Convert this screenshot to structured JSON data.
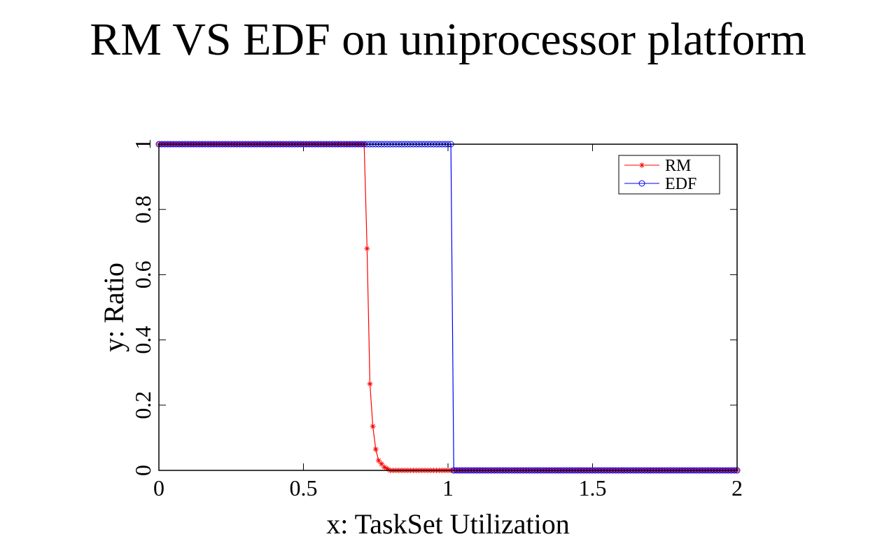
{
  "chart_data": {
    "type": "line",
    "title": "RM VS EDF on uniprocessor platform",
    "x_label": "x: TaskSet Utilization",
    "y_label": "y: Ratio",
    "x": [
      0,
      0.01,
      0.02,
      0.03,
      0.04,
      0.05,
      0.06,
      0.07,
      0.08,
      0.09,
      0.1,
      0.11,
      0.12,
      0.13,
      0.14,
      0.15,
      0.16,
      0.17,
      0.18,
      0.19,
      0.2,
      0.21,
      0.22,
      0.23,
      0.24,
      0.25,
      0.26,
      0.27,
      0.28,
      0.29,
      0.3,
      0.31,
      0.32,
      0.33,
      0.34,
      0.35,
      0.36,
      0.37,
      0.38,
      0.39,
      0.4,
      0.41,
      0.42,
      0.43,
      0.44,
      0.45,
      0.46,
      0.47,
      0.48,
      0.49,
      0.5,
      0.51,
      0.52,
      0.53,
      0.54,
      0.55,
      0.56,
      0.57,
      0.58,
      0.59,
      0.6,
      0.61,
      0.62,
      0.63,
      0.64,
      0.65,
      0.66,
      0.67,
      0.68,
      0.69,
      0.7,
      0.71,
      0.72,
      0.73,
      0.74,
      0.75,
      0.76,
      0.77,
      0.78,
      0.79,
      0.8,
      0.81,
      0.82,
      0.83,
      0.84,
      0.85,
      0.86,
      0.87,
      0.88,
      0.89,
      0.9,
      0.91,
      0.92,
      0.93,
      0.94,
      0.95,
      0.96,
      0.97,
      0.98,
      0.99,
      1,
      1.01,
      1.02,
      1.03,
      1.04,
      1.05,
      1.06,
      1.07,
      1.08,
      1.09,
      1.1,
      1.11,
      1.12,
      1.13,
      1.14,
      1.15,
      1.16,
      1.17,
      1.18,
      1.19,
      1.2,
      1.21,
      1.22,
      1.23,
      1.24,
      1.25,
      1.26,
      1.27,
      1.28,
      1.29,
      1.3,
      1.31,
      1.32,
      1.33,
      1.34,
      1.35,
      1.36,
      1.37,
      1.38,
      1.39,
      1.4,
      1.41,
      1.42,
      1.43,
      1.44,
      1.45,
      1.46,
      1.47,
      1.48,
      1.49,
      1.5,
      1.51,
      1.52,
      1.53,
      1.54,
      1.55,
      1.56,
      1.57,
      1.58,
      1.59,
      1.6,
      1.61,
      1.62,
      1.63,
      1.64,
      1.65,
      1.66,
      1.67,
      1.68,
      1.69,
      1.7,
      1.71,
      1.72,
      1.73,
      1.74,
      1.75,
      1.76,
      1.77,
      1.78,
      1.79,
      1.8,
      1.81,
      1.82,
      1.83,
      1.84,
      1.85,
      1.86,
      1.87,
      1.88,
      1.89,
      1.9,
      1.91,
      1.92,
      1.93,
      1.94,
      1.95,
      1.96,
      1.97,
      1.98,
      1.99,
      2
    ],
    "series": [
      {
        "name": "RM",
        "color": "#ff0000",
        "marker": "star",
        "values": [
          1,
          1,
          1,
          1,
          1,
          1,
          1,
          1,
          1,
          1,
          1,
          1,
          1,
          1,
          1,
          1,
          1,
          1,
          1,
          1,
          1,
          1,
          1,
          1,
          1,
          1,
          1,
          1,
          1,
          1,
          1,
          1,
          1,
          1,
          1,
          1,
          1,
          1,
          1,
          1,
          1,
          1,
          1,
          1,
          1,
          1,
          1,
          1,
          1,
          1,
          1,
          1,
          1,
          1,
          1,
          1,
          1,
          1,
          1,
          1,
          1,
          1,
          1,
          1,
          1,
          1,
          1,
          1,
          1,
          1,
          1,
          1,
          0.68,
          0.265,
          0.135,
          0.065,
          0.03,
          0.02,
          0.01,
          0.005,
          0,
          0,
          0,
          0,
          0,
          0,
          0,
          0,
          0,
          0,
          0,
          0,
          0,
          0,
          0,
          0,
          0,
          0,
          0,
          0,
          0,
          0,
          0,
          0,
          0,
          0,
          0,
          0,
          0,
          0,
          0,
          0,
          0,
          0,
          0,
          0,
          0,
          0,
          0,
          0,
          0,
          0,
          0,
          0,
          0,
          0,
          0,
          0,
          0,
          0,
          0,
          0,
          0,
          0,
          0,
          0,
          0,
          0,
          0,
          0,
          0,
          0,
          0,
          0,
          0,
          0,
          0,
          0,
          0,
          0,
          0,
          0,
          0,
          0,
          0,
          0,
          0,
          0,
          0,
          0,
          0,
          0,
          0,
          0,
          0,
          0,
          0,
          0,
          0,
          0,
          0,
          0,
          0,
          0,
          0,
          0,
          0,
          0,
          0,
          0,
          0,
          0,
          0,
          0,
          0,
          0,
          0,
          0,
          0,
          0,
          0,
          0,
          0,
          0,
          0,
          0,
          0,
          0,
          0,
          0,
          0
        ]
      },
      {
        "name": "EDF",
        "color": "#0000ff",
        "marker": "circle",
        "values": [
          1,
          1,
          1,
          1,
          1,
          1,
          1,
          1,
          1,
          1,
          1,
          1,
          1,
          1,
          1,
          1,
          1,
          1,
          1,
          1,
          1,
          1,
          1,
          1,
          1,
          1,
          1,
          1,
          1,
          1,
          1,
          1,
          1,
          1,
          1,
          1,
          1,
          1,
          1,
          1,
          1,
          1,
          1,
          1,
          1,
          1,
          1,
          1,
          1,
          1,
          1,
          1,
          1,
          1,
          1,
          1,
          1,
          1,
          1,
          1,
          1,
          1,
          1,
          1,
          1,
          1,
          1,
          1,
          1,
          1,
          1,
          1,
          1,
          1,
          1,
          1,
          1,
          1,
          1,
          1,
          1,
          1,
          1,
          1,
          1,
          1,
          1,
          1,
          1,
          1,
          1,
          1,
          1,
          1,
          1,
          1,
          1,
          1,
          1,
          1,
          1,
          1,
          0,
          0,
          0,
          0,
          0,
          0,
          0,
          0,
          0,
          0,
          0,
          0,
          0,
          0,
          0,
          0,
          0,
          0,
          0,
          0,
          0,
          0,
          0,
          0,
          0,
          0,
          0,
          0,
          0,
          0,
          0,
          0,
          0,
          0,
          0,
          0,
          0,
          0,
          0,
          0,
          0,
          0,
          0,
          0,
          0,
          0,
          0,
          0,
          0,
          0,
          0,
          0,
          0,
          0,
          0,
          0,
          0,
          0,
          0,
          0,
          0,
          0,
          0,
          0,
          0,
          0,
          0,
          0,
          0,
          0,
          0,
          0,
          0,
          0,
          0,
          0,
          0,
          0,
          0,
          0,
          0,
          0,
          0,
          0,
          0,
          0,
          0,
          0,
          0,
          0,
          0,
          0,
          0,
          0,
          0,
          0,
          0,
          0,
          0
        ]
      }
    ],
    "xlim": [
      0,
      2
    ],
    "ylim": [
      0,
      1
    ],
    "xticks": [
      0,
      0.5,
      1,
      1.5,
      2
    ],
    "yticks": [
      0,
      0.2,
      0.4,
      0.6,
      0.8,
      1
    ],
    "legend": "upper right"
  }
}
